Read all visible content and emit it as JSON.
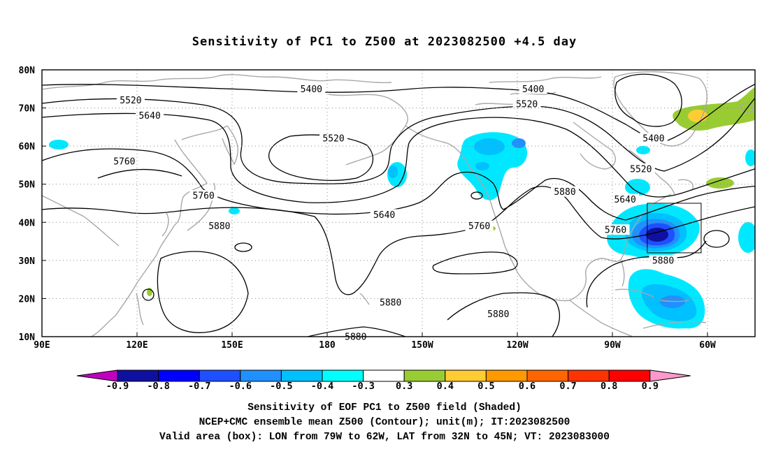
{
  "title": "Sensitivity of PC1 to Z500 at 2023082500 +4.5 day",
  "map": {
    "lat_labels": [
      "80N",
      "70N",
      "60N",
      "50N",
      "40N",
      "30N",
      "20N",
      "10N"
    ],
    "lon_labels": [
      "90E",
      "120E",
      "150E",
      "180",
      "150W",
      "120W",
      "90W",
      "60W"
    ],
    "lon_range": [
      90,
      315
    ],
    "lat_range": [
      10,
      80
    ],
    "gridlines": "dotted",
    "contour_labels": [
      {
        "text": "5400",
        "lon": 175,
        "lat": 75
      },
      {
        "text": "5400",
        "lon": 245,
        "lat": 75
      },
      {
        "text": "5400",
        "lon": 283,
        "lat": 62
      },
      {
        "text": "5520",
        "lon": 118,
        "lat": 72
      },
      {
        "text": "5520",
        "lon": 182,
        "lat": 62
      },
      {
        "text": "5520",
        "lon": 243,
        "lat": 71
      },
      {
        "text": "5520",
        "lon": 279,
        "lat": 54
      },
      {
        "text": "5640",
        "lon": 124,
        "lat": 68
      },
      {
        "text": "5640",
        "lon": 198,
        "lat": 42
      },
      {
        "text": "5640",
        "lon": 274,
        "lat": 46
      },
      {
        "text": "5760",
        "lon": 116,
        "lat": 56
      },
      {
        "text": "5760",
        "lon": 141,
        "lat": 47
      },
      {
        "text": "5760",
        "lon": 228,
        "lat": 39
      },
      {
        "text": "5760",
        "lon": 271,
        "lat": 38
      },
      {
        "text": "5880",
        "lon": 146,
        "lat": 39
      },
      {
        "text": "5880",
        "lon": 255,
        "lat": 48
      },
      {
        "text": "5880",
        "lon": 286,
        "lat": 30
      },
      {
        "text": "5880",
        "lon": 200,
        "lat": 19
      },
      {
        "text": "5880",
        "lon": 234,
        "lat": 16
      },
      {
        "text": "5880",
        "lon": 189,
        "lat": 10
      }
    ],
    "valid_box": {
      "lon_min": -79,
      "lon_max": -62,
      "lat_min": 32,
      "lat_max": 45
    }
  },
  "colorbar": {
    "labels": [
      "-0.9",
      "-0.8",
      "-0.7",
      "-0.6",
      "-0.5",
      "-0.4",
      "-0.3",
      "0.3",
      "0.4",
      "0.5",
      "0.6",
      "0.7",
      "0.8",
      "0.9"
    ],
    "colors": [
      "#c000c0",
      "#1010a0",
      "#0000ff",
      "#1e50ff",
      "#2090ff",
      "#00c0ff",
      "#00ffff",
      "#ffffff",
      "#99cc33",
      "#ffcc33",
      "#ff9900",
      "#ff6600",
      "#ff3300",
      "#ff0000",
      "#ff99cc"
    ]
  },
  "shading_colors": {
    "light_blue": "#00e8ff",
    "sky": "#00c0ff",
    "mid": "#2090ff",
    "blue": "#1e50ff",
    "dark": "#1010a0",
    "green": "#99cc33",
    "yellow": "#ffcc33"
  },
  "caption": [
    "Sensitivity of EOF PC1 to Z500 field (Shaded)",
    "NCEP+CMC ensemble mean Z500 (Contour); unit(m); IT:2023082500",
    "Valid area (box): LON from 79W to 62W, LAT from 32N to 45N; VT: 2023083000"
  ]
}
